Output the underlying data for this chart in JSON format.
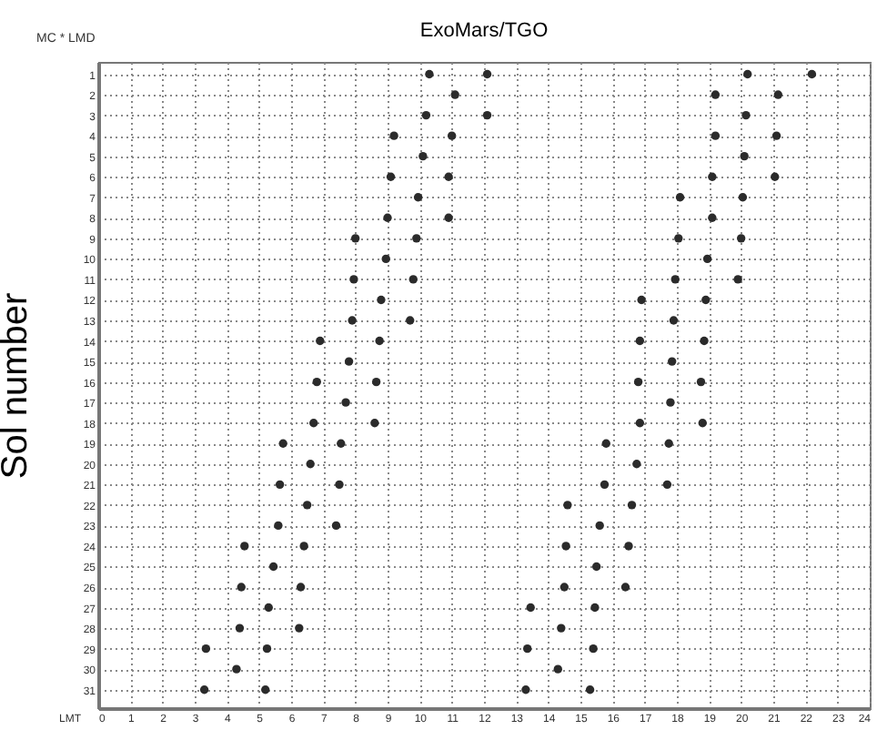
{
  "chart_data": {
    "type": "scatter",
    "title": "ExoMars/TGO",
    "xlabel": "LMT",
    "ylabel": "Sol number",
    "annotations": [
      "MC * LMD"
    ],
    "xlim": [
      0,
      24
    ],
    "xticks": [
      0,
      1,
      2,
      3,
      4,
      5,
      6,
      7,
      8,
      9,
      10,
      11,
      12,
      13,
      14,
      15,
      16,
      17,
      18,
      19,
      20,
      21,
      22,
      23,
      24
    ],
    "ylim": [
      31.9,
      0.4
    ],
    "yticks": [
      1,
      2,
      3,
      4,
      5,
      6,
      7,
      8,
      9,
      10,
      11,
      12,
      13,
      14,
      15,
      16,
      17,
      18,
      19,
      20,
      21,
      22,
      23,
      24,
      25,
      26,
      27,
      28,
      29,
      30,
      31
    ],
    "grid": true,
    "marker": "circle",
    "series": [
      {
        "color": "#2b2b2b",
        "x": [
          10.3,
          12.1,
          20.2,
          22.2,
          11.1,
          19.2,
          21.15,
          10.2,
          12.1,
          20.15,
          9.2,
          11.0,
          19.2,
          21.1,
          10.1,
          20.1,
          9.1,
          10.9,
          19.1,
          21.05,
          9.95,
          18.1,
          20.05,
          9.0,
          10.9,
          19.1,
          8.0,
          9.9,
          18.05,
          20.0,
          8.95,
          18.95,
          7.95,
          9.8,
          17.95,
          19.9,
          8.8,
          16.9,
          18.9,
          7.9,
          9.7,
          17.9,
          6.9,
          8.75,
          16.85,
          18.85,
          7.8,
          17.85,
          6.8,
          8.65,
          16.8,
          18.75,
          7.7,
          17.8,
          6.7,
          8.6,
          16.85,
          18.8,
          5.75,
          7.55,
          15.8,
          17.75,
          6.6,
          16.75,
          5.65,
          7.5,
          15.75,
          17.7,
          6.5,
          14.6,
          16.6,
          5.6,
          7.4,
          15.6,
          4.55,
          6.4,
          14.55,
          16.5,
          5.45,
          15.5,
          4.45,
          6.3,
          14.5,
          16.4,
          5.3,
          13.45,
          15.45,
          4.4,
          6.25,
          14.4,
          3.35,
          5.25,
          13.35,
          15.4,
          4.3,
          14.3,
          3.3,
          5.2,
          13.3,
          15.3
        ],
        "values": [
          1,
          1,
          1,
          1,
          2,
          2,
          2,
          3,
          3,
          3,
          4,
          4,
          4,
          4,
          5,
          5,
          6,
          6,
          6,
          6,
          7,
          7,
          7,
          8,
          8,
          8,
          9,
          9,
          9,
          9,
          10,
          10,
          11,
          11,
          11,
          11,
          12,
          12,
          12,
          13,
          13,
          13,
          14,
          14,
          14,
          14,
          15,
          15,
          16,
          16,
          16,
          16,
          17,
          17,
          18,
          18,
          18,
          18,
          19,
          19,
          19,
          19,
          20,
          20,
          21,
          21,
          21,
          21,
          22,
          22,
          22,
          23,
          23,
          23,
          24,
          24,
          24,
          24,
          25,
          25,
          26,
          26,
          26,
          26,
          27,
          27,
          27,
          28,
          28,
          28,
          29,
          29,
          29,
          29,
          30,
          30,
          31,
          31,
          31,
          31
        ]
      }
    ]
  }
}
